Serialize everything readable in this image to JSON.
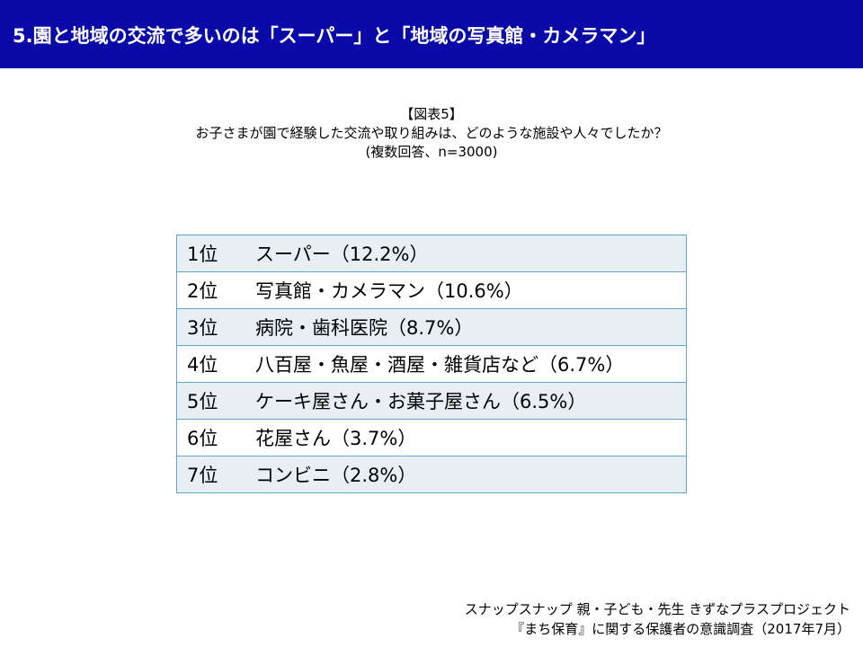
{
  "header": {
    "title": "5.園と地域の交流で多いのは「スーパー」と「地域の写真館・カメラマン」",
    "bg_color": "#0a0aa8"
  },
  "caption": {
    "figure": "【図表5】",
    "question": "お子さまが園で経験した交流や取り組みは、どのような施設や人々でしたか？",
    "note": "(複数回答、n=3000)"
  },
  "ranking": [
    {
      "rank": "1位",
      "label": "スーパー（12.2%）"
    },
    {
      "rank": "2位",
      "label": "写真館・カメラマン（10.6%）"
    },
    {
      "rank": "3位",
      "label": "病院・歯科医院（8.7%）"
    },
    {
      "rank": "4位",
      "label": "八百屋・魚屋・酒屋・雑貨店など（6.7%）"
    },
    {
      "rank": "5位",
      "label": "ケーキ屋さん・お菓子屋さん（6.5%）"
    },
    {
      "rank": "6位",
      "label": "花屋さん（3.7%）"
    },
    {
      "rank": "7位",
      "label": "コンビニ（2.8%）"
    }
  ],
  "footer": {
    "line1": "スナップスナップ 親・子ども・先生 きずなプラスプロジェクト",
    "line2": "『まち保育』に関する保護者の意識調査（2017年7月）"
  }
}
